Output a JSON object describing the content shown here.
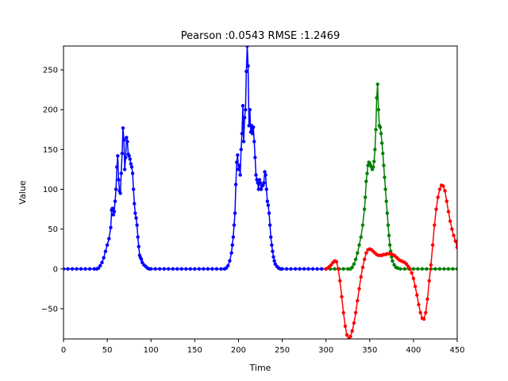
{
  "chart_data": {
    "type": "line",
    "title": "Pearson :0.0543  RMSE :1.2469",
    "xlabel": "Time",
    "ylabel": "Value",
    "xlim": [
      0,
      450
    ],
    "ylim": [
      -88,
      280
    ],
    "xticks": [
      0,
      50,
      100,
      150,
      200,
      250,
      300,
      350,
      400,
      450
    ],
    "yticks": [
      -50,
      0,
      50,
      100,
      150,
      200,
      250
    ],
    "grid": false,
    "legend": "none",
    "series": [
      {
        "color": "#0000ff",
        "marker": "dot",
        "points": [
          [
            0,
            0
          ],
          [
            5,
            0
          ],
          [
            10,
            0
          ],
          [
            15,
            0
          ],
          [
            20,
            0
          ],
          [
            25,
            0
          ],
          [
            30,
            0
          ],
          [
            35,
            0
          ],
          [
            38,
            0
          ],
          [
            40,
            1
          ],
          [
            42,
            4
          ],
          [
            44,
            8
          ],
          [
            46,
            14
          ],
          [
            48,
            22
          ],
          [
            50,
            30
          ],
          [
            52,
            38
          ],
          [
            54,
            52
          ],
          [
            55,
            74
          ],
          [
            56,
            76
          ],
          [
            57,
            68
          ],
          [
            58,
            72
          ],
          [
            59,
            85
          ],
          [
            60,
            100
          ],
          [
            61,
            128
          ],
          [
            62,
            142
          ],
          [
            63,
            112
          ],
          [
            64,
            98
          ],
          [
            65,
            95
          ],
          [
            66,
            120
          ],
          [
            67,
            145
          ],
          [
            68,
            177
          ],
          [
            69,
            162
          ],
          [
            70,
            125
          ],
          [
            71,
            140
          ],
          [
            72,
            165
          ],
          [
            73,
            160
          ],
          [
            74,
            144
          ],
          [
            75,
            142
          ],
          [
            76,
            138
          ],
          [
            77,
            132
          ],
          [
            78,
            128
          ],
          [
            79,
            120
          ],
          [
            80,
            100
          ],
          [
            81,
            82
          ],
          [
            82,
            70
          ],
          [
            83,
            64
          ],
          [
            84,
            55
          ],
          [
            85,
            40
          ],
          [
            86,
            28
          ],
          [
            87,
            17
          ],
          [
            88,
            14
          ],
          [
            89,
            12
          ],
          [
            90,
            8
          ],
          [
            92,
            5
          ],
          [
            94,
            3
          ],
          [
            96,
            1
          ],
          [
            98,
            0
          ],
          [
            100,
            0
          ],
          [
            105,
            0
          ],
          [
            110,
            0
          ],
          [
            115,
            0
          ],
          [
            120,
            0
          ],
          [
            125,
            0
          ],
          [
            130,
            0
          ],
          [
            135,
            0
          ],
          [
            140,
            0
          ],
          [
            145,
            0
          ],
          [
            150,
            0
          ],
          [
            155,
            0
          ],
          [
            160,
            0
          ],
          [
            165,
            0
          ],
          [
            170,
            0
          ],
          [
            175,
            0
          ],
          [
            180,
            0
          ],
          [
            184,
            0
          ],
          [
            186,
            1
          ],
          [
            188,
            4
          ],
          [
            190,
            10
          ],
          [
            192,
            20
          ],
          [
            193,
            30
          ],
          [
            194,
            40
          ],
          [
            195,
            55
          ],
          [
            196,
            70
          ],
          [
            197,
            106
          ],
          [
            198,
            134
          ],
          [
            199,
            143
          ],
          [
            200,
            125
          ],
          [
            201,
            130
          ],
          [
            202,
            118
          ],
          [
            203,
            150
          ],
          [
            204,
            170
          ],
          [
            205,
            205
          ],
          [
            206,
            160
          ],
          [
            207,
            190
          ],
          [
            208,
            200
          ],
          [
            209,
            248
          ],
          [
            210,
            280
          ],
          [
            211,
            255
          ],
          [
            212,
            180
          ],
          [
            213,
            200
          ],
          [
            214,
            172
          ],
          [
            215,
            180
          ],
          [
            216,
            170
          ],
          [
            217,
            178
          ],
          [
            218,
            160
          ],
          [
            219,
            140
          ],
          [
            220,
            118
          ],
          [
            221,
            112
          ],
          [
            222,
            108
          ],
          [
            223,
            100
          ],
          [
            224,
            112
          ],
          [
            225,
            108
          ],
          [
            226,
            100
          ],
          [
            227,
            104
          ],
          [
            228,
            105
          ],
          [
            229,
            108
          ],
          [
            230,
            122
          ],
          [
            231,
            118
          ],
          [
            232,
            100
          ],
          [
            233,
            85
          ],
          [
            234,
            80
          ],
          [
            235,
            70
          ],
          [
            236,
            55
          ],
          [
            237,
            40
          ],
          [
            238,
            30
          ],
          [
            239,
            22
          ],
          [
            240,
            15
          ],
          [
            241,
            10
          ],
          [
            242,
            6
          ],
          [
            244,
            3
          ],
          [
            246,
            1
          ],
          [
            248,
            0
          ],
          [
            250,
            0
          ],
          [
            255,
            0
          ],
          [
            260,
            0
          ],
          [
            265,
            0
          ],
          [
            270,
            0
          ],
          [
            275,
            0
          ],
          [
            280,
            0
          ],
          [
            285,
            0
          ],
          [
            290,
            0
          ],
          [
            295,
            0
          ],
          [
            300,
            0
          ]
        ]
      },
      {
        "color": "#008000",
        "marker": "dot",
        "points": [
          [
            300,
            0
          ],
          [
            305,
            0
          ],
          [
            310,
            0
          ],
          [
            315,
            0
          ],
          [
            320,
            0
          ],
          [
            325,
            0
          ],
          [
            328,
            0
          ],
          [
            330,
            2
          ],
          [
            332,
            6
          ],
          [
            334,
            12
          ],
          [
            336,
            20
          ],
          [
            338,
            30
          ],
          [
            340,
            40
          ],
          [
            342,
            55
          ],
          [
            344,
            75
          ],
          [
            345,
            90
          ],
          [
            346,
            110
          ],
          [
            347,
            120
          ],
          [
            348,
            130
          ],
          [
            349,
            134
          ],
          [
            350,
            133
          ],
          [
            351,
            130
          ],
          [
            352,
            128
          ],
          [
            353,
            125
          ],
          [
            354,
            128
          ],
          [
            355,
            135
          ],
          [
            356,
            150
          ],
          [
            357,
            175
          ],
          [
            358,
            215
          ],
          [
            359,
            232
          ],
          [
            360,
            200
          ],
          [
            361,
            180
          ],
          [
            362,
            178
          ],
          [
            363,
            170
          ],
          [
            364,
            158
          ],
          [
            365,
            145
          ],
          [
            366,
            130
          ],
          [
            367,
            115
          ],
          [
            368,
            100
          ],
          [
            369,
            85
          ],
          [
            370,
            70
          ],
          [
            371,
            55
          ],
          [
            372,
            42
          ],
          [
            373,
            30
          ],
          [
            374,
            22
          ],
          [
            375,
            15
          ],
          [
            376,
            10
          ],
          [
            378,
            5
          ],
          [
            380,
            2
          ],
          [
            382,
            1
          ],
          [
            385,
            0
          ],
          [
            390,
            0
          ],
          [
            395,
            0
          ],
          [
            400,
            0
          ],
          [
            405,
            0
          ],
          [
            410,
            0
          ],
          [
            415,
            0
          ],
          [
            420,
            0
          ],
          [
            425,
            0
          ],
          [
            430,
            0
          ],
          [
            435,
            0
          ],
          [
            440,
            0
          ],
          [
            445,
            0
          ],
          [
            450,
            0
          ]
        ]
      },
      {
        "color": "#ff0000",
        "marker": "dot",
        "points": [
          [
            300,
            0
          ],
          [
            302,
            1
          ],
          [
            304,
            3
          ],
          [
            306,
            5
          ],
          [
            308,
            8
          ],
          [
            310,
            10
          ],
          [
            312,
            9
          ],
          [
            314,
            0
          ],
          [
            316,
            -15
          ],
          [
            318,
            -35
          ],
          [
            320,
            -55
          ],
          [
            322,
            -72
          ],
          [
            324,
            -83
          ],
          [
            326,
            -88
          ],
          [
            328,
            -85
          ],
          [
            330,
            -78
          ],
          [
            332,
            -68
          ],
          [
            334,
            -55
          ],
          [
            336,
            -40
          ],
          [
            338,
            -25
          ],
          [
            340,
            -10
          ],
          [
            342,
            2
          ],
          [
            344,
            12
          ],
          [
            346,
            20
          ],
          [
            348,
            24
          ],
          [
            350,
            25
          ],
          [
            352,
            24
          ],
          [
            354,
            22
          ],
          [
            356,
            20
          ],
          [
            358,
            18
          ],
          [
            360,
            17
          ],
          [
            362,
            17
          ],
          [
            364,
            17
          ],
          [
            366,
            18
          ],
          [
            368,
            18
          ],
          [
            370,
            19
          ],
          [
            372,
            19
          ],
          [
            374,
            19
          ],
          [
            376,
            18
          ],
          [
            378,
            17
          ],
          [
            380,
            15
          ],
          [
            382,
            13
          ],
          [
            384,
            11
          ],
          [
            386,
            10
          ],
          [
            388,
            9
          ],
          [
            390,
            8
          ],
          [
            392,
            6
          ],
          [
            394,
            3
          ],
          [
            396,
            0
          ],
          [
            398,
            -5
          ],
          [
            400,
            -12
          ],
          [
            402,
            -22
          ],
          [
            404,
            -33
          ],
          [
            406,
            -45
          ],
          [
            408,
            -55
          ],
          [
            410,
            -62
          ],
          [
            412,
            -63
          ],
          [
            414,
            -55
          ],
          [
            416,
            -38
          ],
          [
            418,
            -15
          ],
          [
            420,
            5
          ],
          [
            422,
            30
          ],
          [
            424,
            55
          ],
          [
            426,
            75
          ],
          [
            428,
            90
          ],
          [
            430,
            100
          ],
          [
            432,
            105
          ],
          [
            434,
            104
          ],
          [
            436,
            98
          ],
          [
            438,
            85
          ],
          [
            440,
            72
          ],
          [
            442,
            60
          ],
          [
            444,
            50
          ],
          [
            446,
            42
          ],
          [
            448,
            35
          ],
          [
            450,
            27
          ]
        ]
      }
    ]
  }
}
